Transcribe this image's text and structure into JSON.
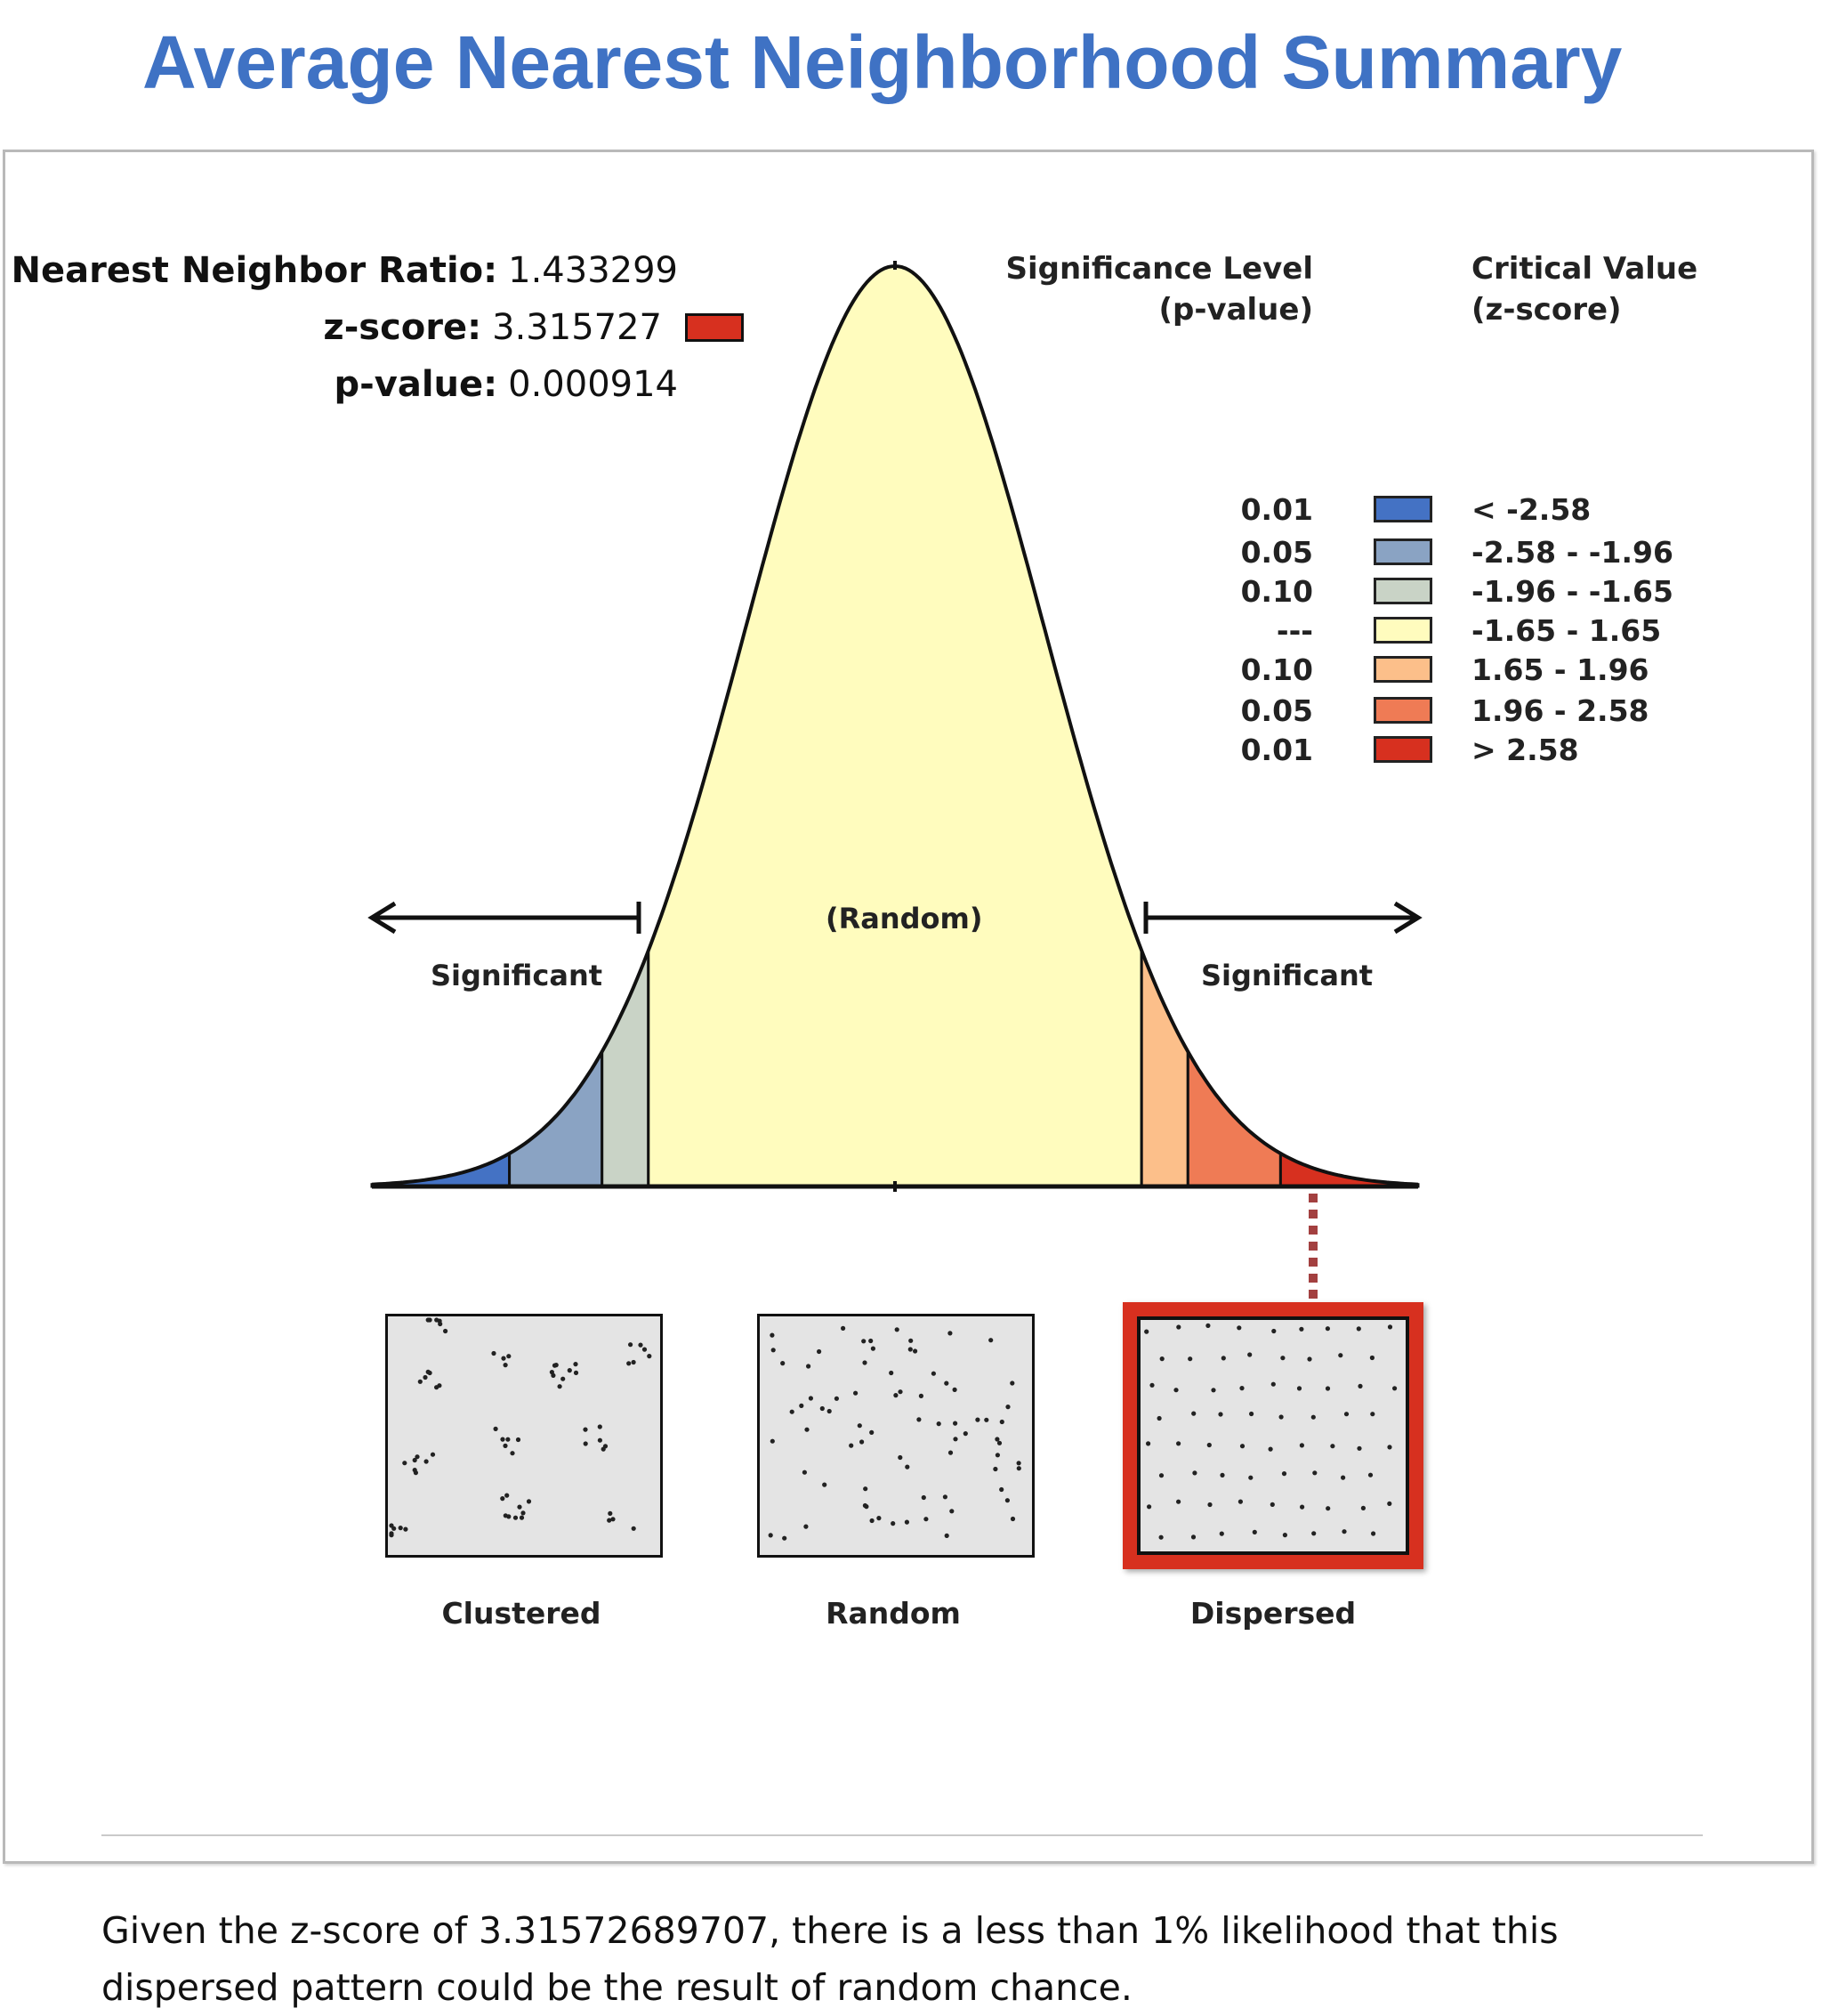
{
  "page": {
    "title": "Average Nearest Neighborhood Summary"
  },
  "stats": {
    "ratio_label": "Nearest Neighbor Ratio:",
    "ratio_value": "1.433299",
    "z_label": "z-score:",
    "z_value": "3.315727",
    "p_label": "p-value:",
    "p_value": "0.000914",
    "z_bin_color": "#d7301f"
  },
  "legend": {
    "p_header_line1": "Significance Level",
    "p_header_line2": "(p-value)",
    "z_header_line1": "Critical Value",
    "z_header_line2": "(z-score)",
    "rows": [
      {
        "p": "0.01",
        "z": "< -2.58",
        "color": "#4472c4"
      },
      {
        "p": "0.05",
        "z": "-2.58 - -1.96",
        "color": "#8aa3c3"
      },
      {
        "p": "0.10",
        "z": "-1.96 - -1.65",
        "color": "#c9d3c6"
      },
      {
        "p": "---",
        "z": "-1.65 - 1.65",
        "color": "#fffcbe"
      },
      {
        "p": "0.10",
        "z": "1.65 - 1.96",
        "color": "#fcbf8a"
      },
      {
        "p": "0.05",
        "z": "1.96 - 2.58",
        "color": "#ef7b55"
      },
      {
        "p": "0.01",
        "z": "> 2.58",
        "color": "#d7301f"
      }
    ]
  },
  "curve": {
    "random_label": "(Random)",
    "left_label": "Significant",
    "right_label": "Significant",
    "z_range": [
      -3.5,
      3.5
    ],
    "breaks": [
      -2.58,
      -1.96,
      -1.65,
      1.65,
      1.96,
      2.58
    ],
    "band_colors": [
      "#4472c4",
      "#8aa3c3",
      "#c9d3c6",
      "#fffcbe",
      "#fcbf8a",
      "#ef7b55",
      "#d7301f"
    ],
    "curve_color": "#111111"
  },
  "patterns": [
    {
      "label": "Clustered",
      "selected": false
    },
    {
      "label": "Random",
      "selected": false
    },
    {
      "label": "Dispersed",
      "selected": true
    }
  ],
  "summary": {
    "text": "Given the z-score of 3.31572689707, there is a less than 1% likelihood that this dispersed pattern could be the result of random chance."
  },
  "chart_data": {
    "type": "area",
    "title": "Average Nearest Neighborhood Summary",
    "xlabel": "",
    "ylabel": "",
    "x_description": "z-score",
    "observed": {
      "nearest_neighbor_ratio": 1.433299,
      "z_score": 3.315727,
      "p_value": 0.000914
    },
    "categories": [
      "< -2.58",
      "-2.58 - -1.96",
      "-1.96 - -1.65",
      "-1.65 - 1.65",
      "1.65 - 1.96",
      "1.96 - 2.58",
      "> 2.58"
    ],
    "significance_levels": [
      "0.01",
      "0.05",
      "0.10",
      "---",
      "0.10",
      "0.05",
      "0.01"
    ],
    "critical_values": [
      -2.58,
      -1.96,
      -1.65,
      1.65,
      1.96,
      2.58
    ],
    "highlighted_category": "> 2.58",
    "pattern_result": "Dispersed"
  }
}
